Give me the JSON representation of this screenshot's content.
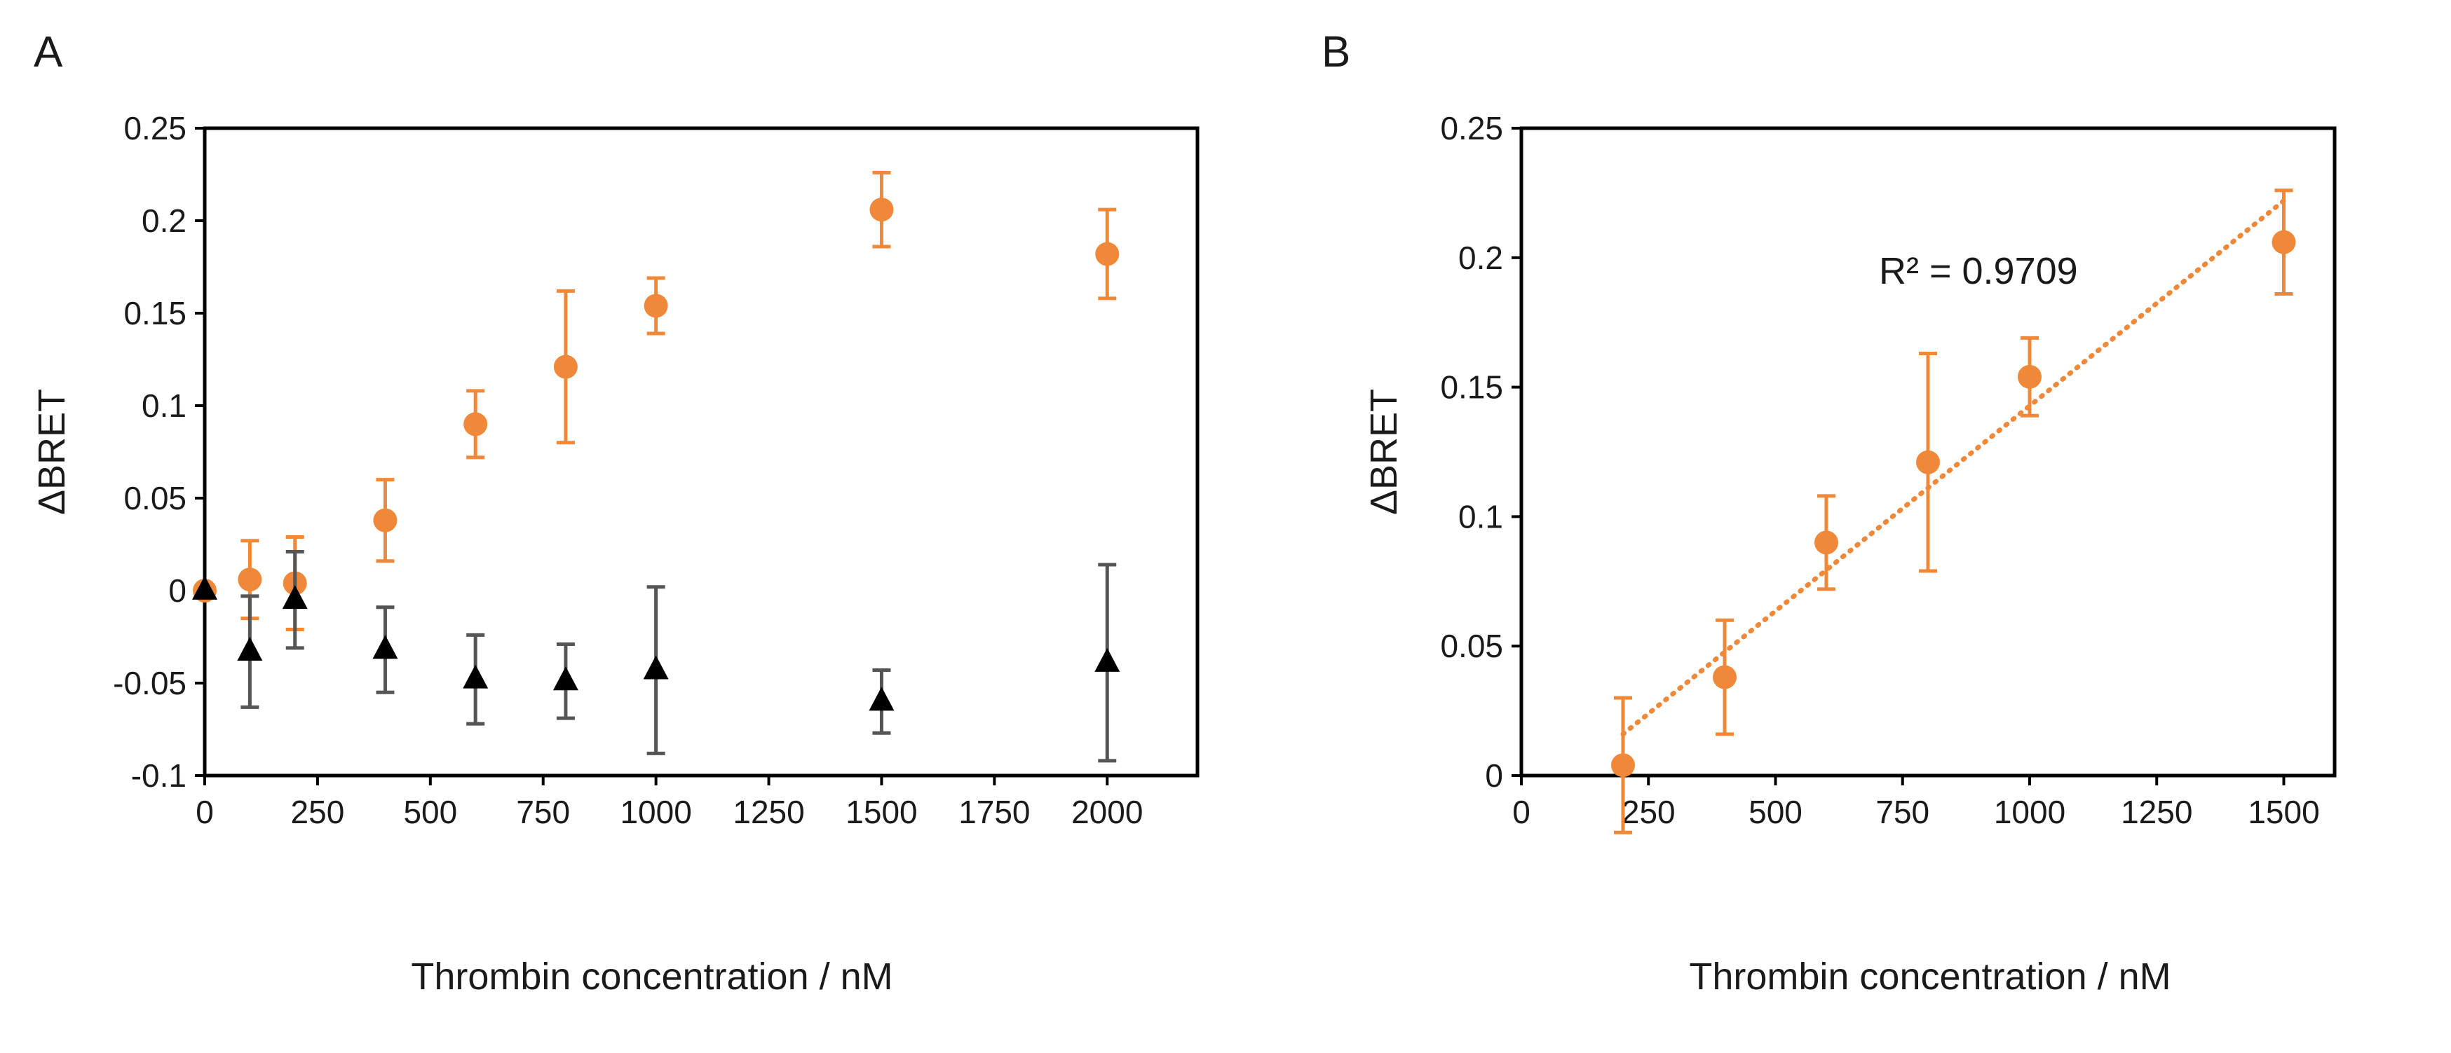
{
  "panels": [
    {
      "label": "A",
      "chart_data": {
        "type": "scatter",
        "title": "",
        "xlabel": "Thrombin concentration / nM",
        "ylabel": "ΔBRET",
        "xlim": [
          0,
          2200
        ],
        "ylim": [
          -0.1,
          0.25
        ],
        "xticks": [
          "0",
          "250",
          "500",
          "750",
          "1000",
          "1250",
          "1500",
          "1750",
          "2000"
        ],
        "yticks": [
          "-0.1",
          "-0.05",
          "0",
          "0.05",
          "0.1",
          "0.15",
          "0.2",
          "0.25"
        ],
        "grid": false,
        "series": [
          {
            "name": "orange circles",
            "marker": "circle",
            "color": "#F0883A",
            "x": [
              0,
              100,
              200,
              400,
              600,
              800,
              1000,
              1500,
              2000
            ],
            "y": [
              0.0,
              0.006,
              0.004,
              0.038,
              0.09,
              0.121,
              0.154,
              0.206,
              0.182
            ],
            "err": [
              0.0,
              0.021,
              0.025,
              0.022,
              0.018,
              0.041,
              0.015,
              0.02,
              0.024
            ]
          },
          {
            "name": "black triangles",
            "marker": "triangle",
            "color": "#000000",
            "errColor": "#555555",
            "x": [
              0,
              100,
              200,
              400,
              600,
              800,
              1000,
              1500,
              2000
            ],
            "y": [
              0.0,
              -0.033,
              -0.005,
              -0.032,
              -0.048,
              -0.049,
              -0.043,
              -0.06,
              -0.039
            ],
            "err": [
              0.0,
              0.03,
              0.026,
              0.023,
              0.024,
              0.02,
              0.045,
              0.017,
              0.053
            ]
          }
        ]
      }
    },
    {
      "label": "B",
      "chart_data": {
        "type": "scatter",
        "title": "",
        "xlabel": "Thrombin concentration / nM",
        "ylabel": "ΔBRET",
        "xlim": [
          0,
          1600
        ],
        "ylim": [
          0,
          0.25
        ],
        "xticks": [
          "0",
          "250",
          "500",
          "750",
          "1000",
          "1250",
          "1500"
        ],
        "yticks": [
          "0",
          "0.05",
          "0.1",
          "0.15",
          "0.2",
          "0.25"
        ],
        "grid": false,
        "annotation": "R² = 0.9709",
        "trendline": {
          "x": [
            200,
            1500
          ],
          "y": [
            0.016,
            0.222
          ],
          "style": "dotted"
        },
        "series": [
          {
            "name": "orange circles",
            "marker": "circle",
            "color": "#F0883A",
            "x": [
              200,
              400,
              600,
              800,
              1000,
              1500
            ],
            "y": [
              0.004,
              0.038,
              0.09,
              0.121,
              0.154,
              0.206
            ],
            "err": [
              0.026,
              0.022,
              0.018,
              0.042,
              0.015,
              0.02
            ]
          }
        ]
      }
    }
  ]
}
